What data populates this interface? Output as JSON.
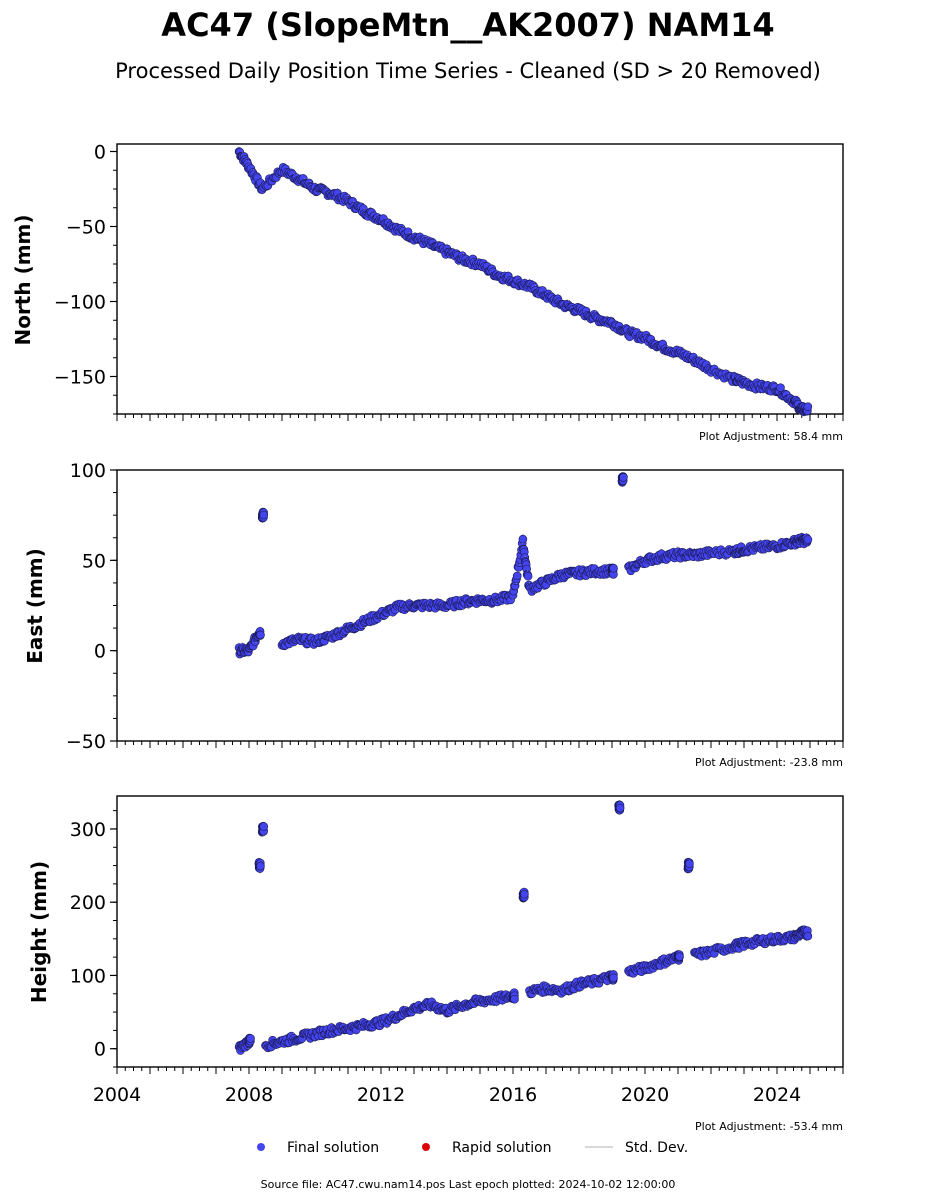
{
  "title": "AC47 (SlopeMtn__AK2007) NAM14",
  "subtitle": "Processed Daily Position Time Series - Cleaned (SD > 20 Removed)",
  "footer": "Source file: AC47.cwu.nam14.pos  Last epoch plotted: 2024-10-02 12:00:00",
  "legend": {
    "items": [
      {
        "label": "Final solution",
        "color": "#4444ee"
      },
      {
        "label": "Rapid solution",
        "color": "#dd0000"
      },
      {
        "label": "Std. Dev.",
        "color": "#cccccc"
      }
    ]
  },
  "colors": {
    "final": "#4444ee",
    "rapid": "#dd0000",
    "stddev": "#b0b0b0"
  },
  "chart_data": [
    {
      "type": "scatter",
      "ylabel": "North (mm)",
      "adjustment": "Plot Adjustment: 58.4 mm",
      "xlim": [
        2004.0,
        2026.0
      ],
      "ylim": [
        -175,
        5
      ],
      "yticks": [
        0,
        -50,
        -100,
        -150
      ],
      "x": [
        2007.7,
        2008.0,
        2008.4,
        2009.0,
        2009.5,
        2010.0,
        2010.5,
        2011.0,
        2011.5,
        2012.0,
        2012.5,
        2013.0,
        2013.5,
        2014.0,
        2014.5,
        2015.0,
        2015.5,
        2016.0,
        2016.5,
        2017.0,
        2017.5,
        2018.0,
        2018.5,
        2019.0,
        2019.5,
        2020.0,
        2020.5,
        2021.0,
        2021.5,
        2022.0,
        2022.7,
        2023.0,
        2023.5,
        2024.0,
        2024.5,
        2024.75
      ],
      "y": [
        0,
        -10,
        -25,
        -12,
        -18,
        -25,
        -28,
        -33,
        -40,
        -45,
        -52,
        -57,
        -62,
        -67,
        -72,
        -75,
        -82,
        -86,
        -90,
        -96,
        -102,
        -106,
        -111,
        -114,
        -121,
        -124,
        -130,
        -134,
        -139,
        -145,
        -152,
        -154,
        -157,
        -158,
        -166,
        -172
      ]
    },
    {
      "type": "scatter",
      "ylabel": "East (mm)",
      "adjustment": "Plot Adjustment: -23.8 mm",
      "xlim": [
        2004.0,
        2026.0
      ],
      "ylim": [
        -50,
        100
      ],
      "yticks": [
        100,
        50,
        0,
        -50
      ],
      "x": [
        2007.7,
        2008.0,
        2008.3,
        2008.4,
        2009.0,
        2009.5,
        2010.0,
        2010.5,
        2011.0,
        2011.5,
        2012.0,
        2012.5,
        2013.0,
        2013.5,
        2014.0,
        2014.5,
        2015.0,
        2015.5,
        2016.0,
        2016.3,
        2016.5,
        2017.0,
        2017.5,
        2018.0,
        2018.5,
        2019.0,
        2019.3,
        2019.5,
        2020.0,
        2020.5,
        2021.0,
        2021.5,
        2022.0,
        2022.7,
        2023.0,
        2023.5,
        2024.0,
        2024.5,
        2024.75
      ],
      "y": [
        0,
        0,
        10,
        75,
        4,
        6,
        5,
        8,
        12,
        16,
        20,
        24,
        25,
        25,
        25,
        27,
        28,
        28,
        30,
        60,
        34,
        38,
        42,
        43,
        44,
        44,
        95,
        45,
        50,
        52,
        53,
        53,
        54,
        55,
        56,
        57,
        58,
        60,
        61
      ]
    },
    {
      "type": "scatter",
      "ylabel": "Height (mm)",
      "adjustment": "Plot Adjustment: -53.4 mm",
      "xlim": [
        2004.0,
        2026.0
      ],
      "ylim": [
        -25,
        345
      ],
      "yticks": [
        300,
        200,
        100,
        0
      ],
      "xticks": [
        2004,
        2008,
        2012,
        2016,
        2020,
        2024
      ],
      "x": [
        2007.7,
        2008.0,
        2008.3,
        2008.4,
        2008.5,
        2009.0,
        2009.5,
        2010.0,
        2010.5,
        2011.0,
        2011.5,
        2012.0,
        2012.5,
        2013.0,
        2013.5,
        2014.0,
        2014.5,
        2015.0,
        2015.5,
        2016.0,
        2016.3,
        2016.5,
        2017.0,
        2017.5,
        2018.0,
        2018.5,
        2019.0,
        2019.2,
        2019.5,
        2020.0,
        2020.5,
        2021.0,
        2021.3,
        2021.5,
        2022.0,
        2022.7,
        2023.0,
        2023.5,
        2024.0,
        2024.5,
        2024.75
      ],
      "y": [
        0,
        10,
        250,
        300,
        5,
        10,
        15,
        20,
        25,
        28,
        32,
        36,
        45,
        55,
        60,
        52,
        60,
        65,
        68,
        72,
        210,
        78,
        82,
        80,
        88,
        92,
        98,
        330,
        105,
        110,
        118,
        125,
        250,
        128,
        132,
        140,
        143,
        147,
        150,
        152,
        158
      ]
    }
  ]
}
